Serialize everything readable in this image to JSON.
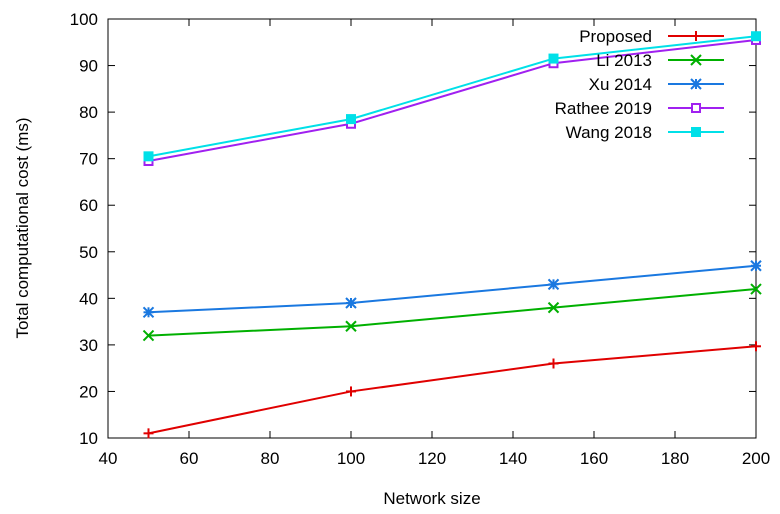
{
  "chart_data": {
    "type": "line",
    "title": "",
    "xlabel": "Network size",
    "ylabel": "Total computational cost (ms)",
    "xlim": [
      40,
      200
    ],
    "ylim": [
      10,
      100
    ],
    "xticks": [
      40,
      60,
      80,
      100,
      120,
      140,
      160,
      180,
      200
    ],
    "yticks": [
      10,
      20,
      30,
      40,
      50,
      60,
      70,
      80,
      90,
      100
    ],
    "x": [
      50,
      100,
      150,
      200
    ],
    "grid": false,
    "legend_position": "top-right",
    "series": [
      {
        "name": "Proposed",
        "values": [
          11,
          20,
          26,
          29.7
        ],
        "color": "#e00000",
        "marker": "plus"
      },
      {
        "name": "Li 2013",
        "values": [
          32,
          34,
          38,
          42
        ],
        "color": "#00b000",
        "marker": "cross"
      },
      {
        "name": "Xu 2014",
        "values": [
          37,
          39,
          43,
          47
        ],
        "color": "#1a78e0",
        "marker": "star"
      },
      {
        "name": "Rathee 2019",
        "values": [
          69.5,
          77.5,
          90.5,
          95.5
        ],
        "color": "#a020f0",
        "marker": "open-square"
      },
      {
        "name": "Wang 2018",
        "values": [
          70.5,
          78.5,
          91.5,
          96.3
        ],
        "color": "#00e0e8",
        "marker": "filled-square"
      }
    ]
  }
}
